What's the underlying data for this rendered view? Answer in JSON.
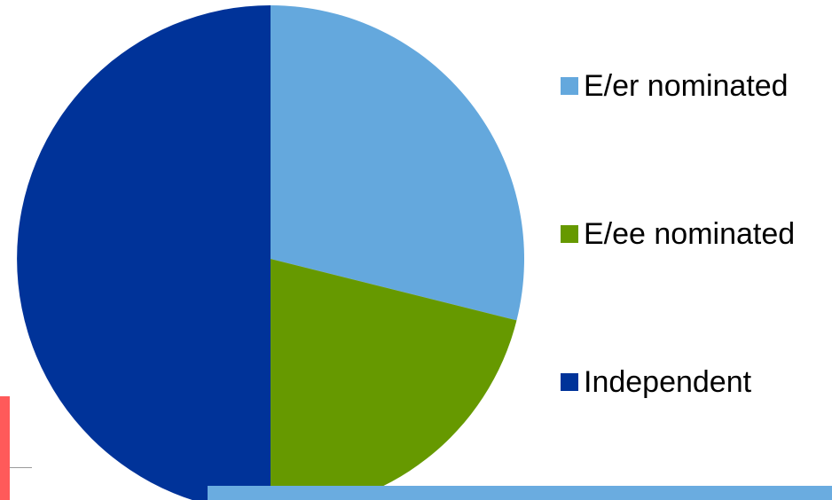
{
  "chart_data": {
    "type": "pie",
    "title": "",
    "start_angle_deg": 0,
    "direction": "clockwise",
    "slices": [
      {
        "name": "E/er nominated",
        "value": 28.9,
        "color": "#64a8dd"
      },
      {
        "name": "E/ee nominated",
        "value": 21.1,
        "color": "#669900"
      },
      {
        "name": "Independent",
        "value": 50.0,
        "color": "#003399"
      }
    ],
    "legend_placement": "right"
  }
}
